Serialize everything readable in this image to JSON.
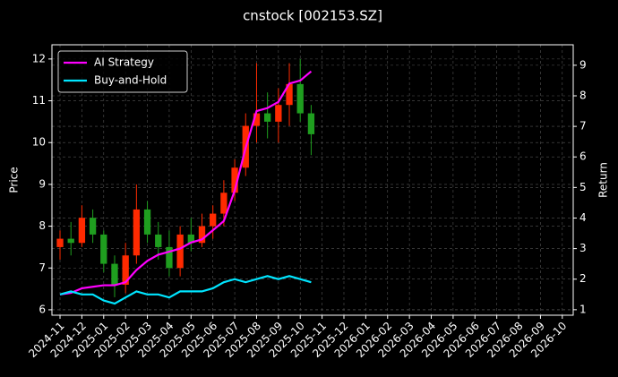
{
  "chart_data": {
    "type": "candlestick",
    "title": "cnstock [002153.SZ]",
    "ylabel": "Price",
    "y2label": "Return",
    "x": [
      0,
      0.5,
      1,
      1.5,
      2,
      2.5,
      3,
      3.5,
      4,
      4.5,
      5,
      5.5,
      6,
      6.5,
      7,
      7.5,
      8,
      8.5,
      9,
      9.5,
      10,
      10.5,
      11,
      11.5
    ],
    "open": [
      7.5,
      7.7,
      7.6,
      8.2,
      7.8,
      7.1,
      6.6,
      7.3,
      8.4,
      7.8,
      7.5,
      7.0,
      7.8,
      7.6,
      8.0,
      8.3,
      8.8,
      9.4,
      10.4,
      10.7,
      10.5,
      10.9,
      11.4,
      10.7
    ],
    "high": [
      7.9,
      8.1,
      8.5,
      8.4,
      7.9,
      7.3,
      7.6,
      9.0,
      8.6,
      8.1,
      7.9,
      8.0,
      8.2,
      8.3,
      8.5,
      9.1,
      9.6,
      10.7,
      11.9,
      11.2,
      11.3,
      11.9,
      12.0,
      10.9
    ],
    "low": [
      7.2,
      7.3,
      7.5,
      7.6,
      6.9,
      6.3,
      6.4,
      7.1,
      7.6,
      7.2,
      6.8,
      6.8,
      7.4,
      7.5,
      7.7,
      8.0,
      8.6,
      9.2,
      10.0,
      10.1,
      10.0,
      10.4,
      10.5,
      9.7
    ],
    "close": [
      7.7,
      7.6,
      8.2,
      7.8,
      7.1,
      6.6,
      7.3,
      8.4,
      7.8,
      7.5,
      7.0,
      7.8,
      7.6,
      8.0,
      8.3,
      8.8,
      9.4,
      10.4,
      10.7,
      10.5,
      10.9,
      11.4,
      10.7,
      10.2
    ],
    "up_color": "#ff2a00",
    "down_color": "#1f9e1f",
    "series": [
      {
        "name": "AI Strategy",
        "color": "#ff00ff",
        "axis": "y2",
        "values": [
          1.5,
          1.55,
          1.7,
          1.75,
          1.8,
          1.8,
          1.9,
          2.3,
          2.6,
          2.8,
          2.9,
          3.0,
          3.2,
          3.3,
          3.6,
          3.9,
          4.9,
          6.3,
          7.5,
          7.6,
          7.8,
          8.4,
          8.5,
          8.8
        ]
      },
      {
        "name": "Buy-and-Hold",
        "color": "#00e5ff",
        "axis": "y2",
        "values": [
          1.5,
          1.6,
          1.5,
          1.5,
          1.3,
          1.2,
          1.4,
          1.6,
          1.5,
          1.5,
          1.4,
          1.6,
          1.6,
          1.6,
          1.7,
          1.9,
          2.0,
          1.9,
          2.0,
          2.1,
          2.0,
          2.1,
          2.0,
          1.9
        ]
      }
    ],
    "xlim": [
      -0.37,
      23.5
    ],
    "xticks": [
      {
        "value": 0,
        "label": "2024-11"
      },
      {
        "value": 1,
        "label": "2024-12"
      },
      {
        "value": 2,
        "label": "2025-01"
      },
      {
        "value": 3,
        "label": "2025-02"
      },
      {
        "value": 4,
        "label": "2025-03"
      },
      {
        "value": 5,
        "label": "2025-04"
      },
      {
        "value": 6,
        "label": "2025-05"
      },
      {
        "value": 7,
        "label": "2025-06"
      },
      {
        "value": 8,
        "label": "2025-07"
      },
      {
        "value": 9,
        "label": "2025-08"
      },
      {
        "value": 10,
        "label": "2025-09"
      },
      {
        "value": 11,
        "label": "2025-10"
      },
      {
        "value": 12,
        "label": "2025-11"
      },
      {
        "value": 13,
        "label": "2025-12"
      },
      {
        "value": 14,
        "label": "2026-01"
      },
      {
        "value": 15,
        "label": "2026-02"
      },
      {
        "value": 16,
        "label": "2026-03"
      },
      {
        "value": 17,
        "label": "2026-04"
      },
      {
        "value": 18,
        "label": "2026-05"
      },
      {
        "value": 19,
        "label": "2026-06"
      },
      {
        "value": 20,
        "label": "2026-07"
      },
      {
        "value": 21,
        "label": "2026-08"
      },
      {
        "value": 22,
        "label": "2026-09"
      },
      {
        "value": 23,
        "label": "2026-10"
      }
    ],
    "ylim": [
      5.87,
      12.34
    ],
    "yticks": [
      6,
      7,
      8,
      9,
      10,
      11,
      12
    ],
    "y2lim": [
      0.82,
      9.67
    ],
    "y2ticks": [
      1,
      2,
      3,
      4,
      5,
      6,
      7,
      8,
      9
    ],
    "grid": true,
    "legend": "upper left"
  }
}
